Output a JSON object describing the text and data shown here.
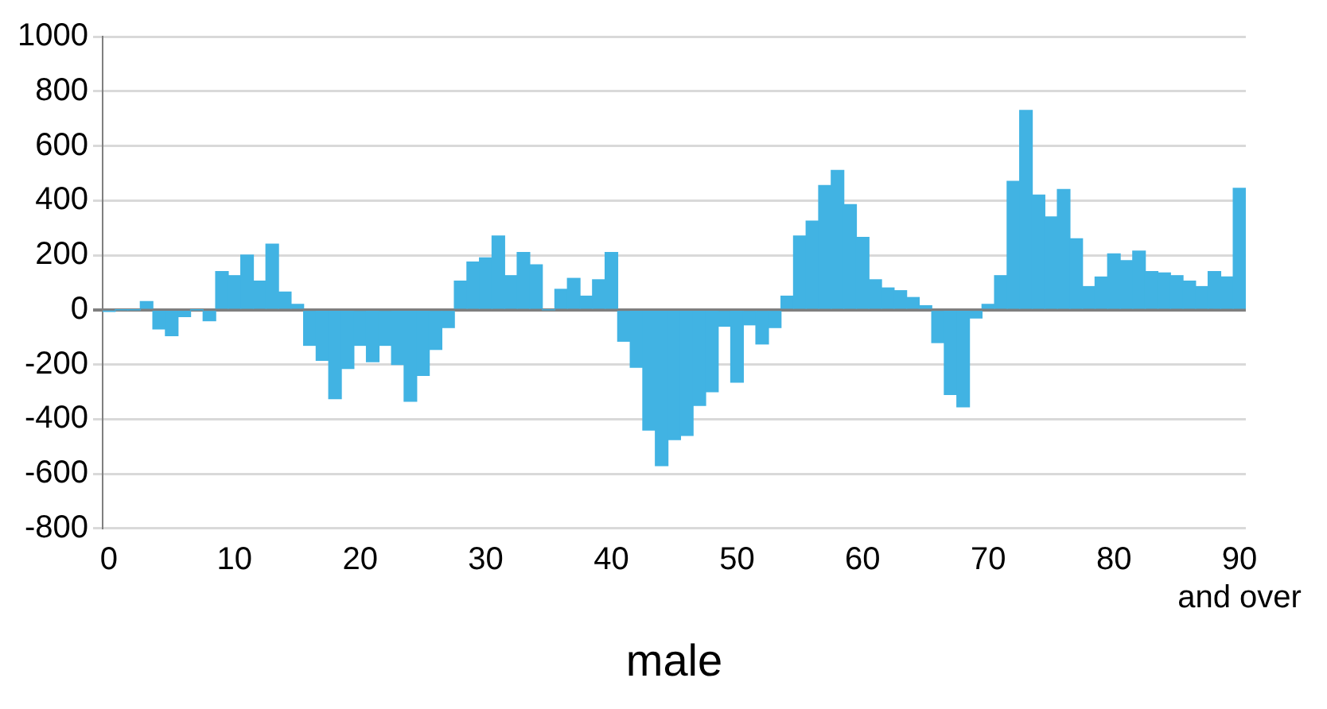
{
  "chart_data": {
    "type": "bar",
    "xlabel": "male",
    "categories": [
      "0",
      null,
      null,
      null,
      null,
      null,
      null,
      null,
      null,
      null,
      "10",
      null,
      null,
      null,
      null,
      null,
      null,
      null,
      null,
      null,
      "20",
      null,
      null,
      null,
      null,
      null,
      null,
      null,
      null,
      null,
      "30",
      null,
      null,
      null,
      null,
      null,
      null,
      null,
      null,
      null,
      "40",
      null,
      null,
      null,
      null,
      null,
      null,
      null,
      null,
      null,
      "50",
      null,
      null,
      null,
      null,
      null,
      null,
      null,
      null,
      null,
      "60",
      null,
      null,
      null,
      null,
      null,
      null,
      null,
      null,
      null,
      "70",
      null,
      null,
      null,
      null,
      null,
      null,
      null,
      null,
      null,
      "80",
      null,
      null,
      null,
      null,
      null,
      null,
      null,
      null,
      null,
      "90\nand over"
    ],
    "values": [
      -5,
      0,
      0,
      30,
      -70,
      -95,
      -25,
      0,
      -40,
      140,
      125,
      200,
      105,
      240,
      65,
      20,
      -130,
      -185,
      -325,
      -215,
      -130,
      -190,
      -130,
      -200,
      -335,
      -240,
      -145,
      -65,
      105,
      175,
      190,
      270,
      125,
      210,
      165,
      0,
      75,
      115,
      50,
      110,
      210,
      -115,
      -210,
      -440,
      -570,
      -475,
      -460,
      -350,
      -300,
      -60,
      -265,
      -55,
      -125,
      -65,
      50,
      270,
      325,
      455,
      510,
      385,
      265,
      110,
      80,
      70,
      45,
      15,
      -120,
      -310,
      -355,
      -30,
      20,
      125,
      470,
      730,
      420,
      340,
      440,
      260,
      85,
      120,
      205,
      180,
      215,
      140,
      135,
      125,
      105,
      85,
      140,
      120,
      445
    ],
    "color": "#41b3e3",
    "ylim": [
      -800,
      1000
    ],
    "yticks": [
      -800,
      -600,
      -400,
      -200,
      0,
      200,
      400,
      600,
      800,
      1000
    ],
    "grid": "y",
    "legend": false
  }
}
